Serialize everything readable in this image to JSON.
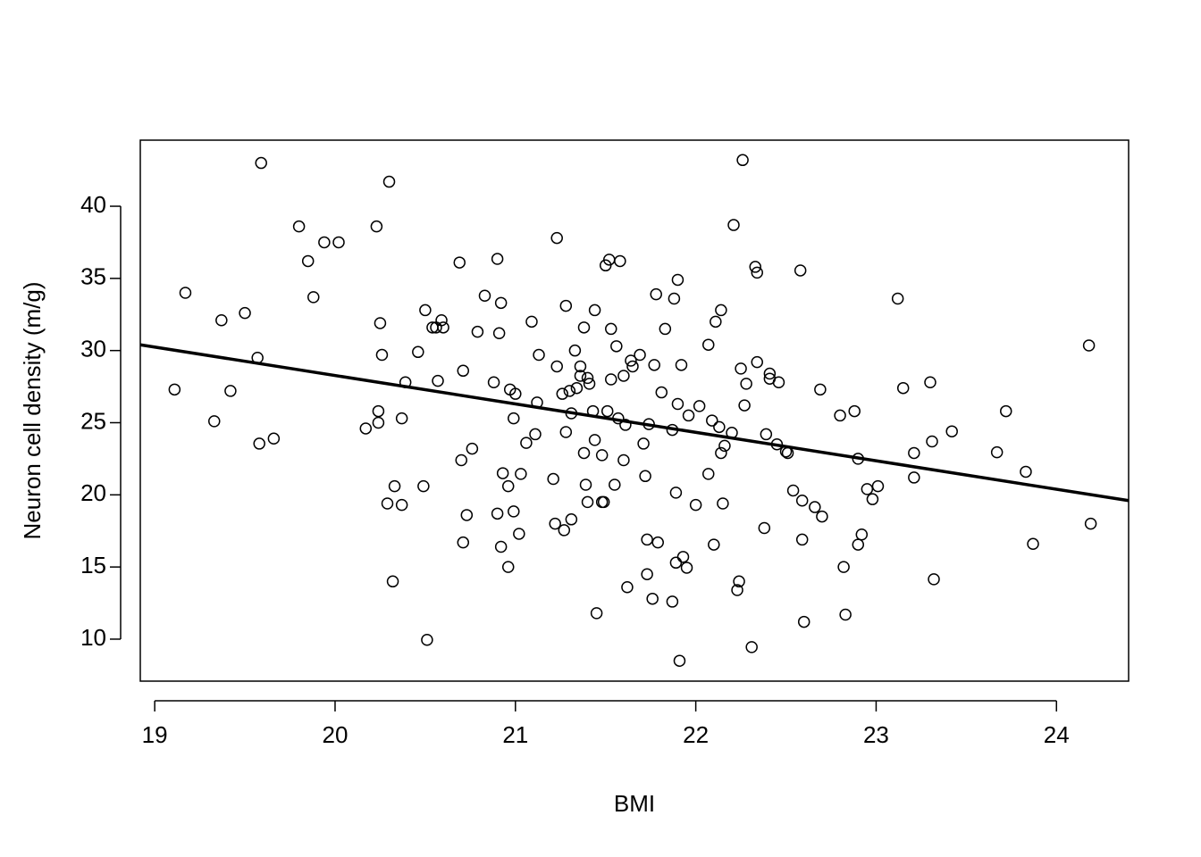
{
  "chart_data": {
    "type": "scatter",
    "x_label": "BMI",
    "y_label": "Neuron cell density (m/g)",
    "x": [
      19.11,
      19.17,
      19.33,
      19.37,
      19.42,
      19.5,
      19.57,
      19.58,
      19.59,
      19.66,
      19.8,
      19.85,
      19.88,
      19.94,
      20.02,
      20.17,
      20.23,
      20.24,
      20.25,
      20.26,
      20.24,
      20.29,
      20.3,
      20.32,
      20.33,
      20.37,
      20.37,
      20.39,
      20.46,
      20.49,
      20.5,
      20.51,
      20.54,
      20.56,
      20.57,
      20.59,
      20.6,
      20.69,
      20.7,
      20.71,
      20.71,
      20.73,
      20.76,
      20.79,
      20.83,
      20.88,
      20.9,
      20.9,
      20.91,
      20.92,
      20.92,
      20.93,
      20.96,
      20.96,
      20.97,
      20.99,
      20.99,
      21.0,
      21.03,
      21.02,
      21.06,
      21.09,
      21.11,
      21.12,
      21.13,
      21.21,
      21.22,
      21.23,
      21.23,
      21.26,
      21.27,
      21.28,
      21.28,
      21.3,
      21.31,
      21.31,
      21.33,
      21.34,
      21.36,
      21.36,
      21.38,
      21.38,
      21.39,
      21.4,
      21.4,
      21.41,
      21.43,
      21.44,
      21.44,
      21.45,
      21.48,
      21.48,
      21.49,
      21.5,
      21.51,
      21.52,
      21.53,
      21.53,
      21.55,
      21.56,
      21.57,
      21.58,
      21.6,
      21.6,
      21.61,
      21.62,
      21.64,
      21.65,
      21.69,
      21.71,
      21.72,
      21.73,
      21.73,
      21.74,
      21.76,
      21.77,
      21.78,
      21.79,
      21.81,
      21.83,
      21.87,
      21.87,
      21.88,
      21.89,
      21.89,
      21.9,
      21.9,
      21.91,
      21.92,
      21.93,
      21.95,
      21.96,
      22.0,
      22.02,
      22.07,
      22.07,
      22.09,
      22.1,
      22.11,
      22.13,
      22.14,
      22.14,
      22.15,
      22.16,
      22.2,
      22.21,
      22.23,
      22.24,
      22.25,
      22.26,
      22.27,
      22.28,
      22.31,
      22.33,
      22.34,
      22.34,
      22.38,
      22.39,
      22.41,
      22.41,
      22.45,
      22.46,
      22.5,
      22.51,
      22.54,
      22.58,
      22.59,
      22.59,
      22.6,
      22.66,
      22.69,
      22.7,
      22.8,
      22.82,
      22.83,
      22.88,
      22.9,
      22.9,
      22.92,
      22.95,
      22.98,
      23.01,
      23.12,
      23.15,
      23.21,
      23.21,
      23.3,
      23.31,
      23.32,
      23.42,
      23.67,
      23.72,
      23.83,
      23.87,
      24.18,
      24.19
    ],
    "values": [
      27.3,
      34.0,
      25.1,
      32.1,
      27.2,
      32.6,
      29.5,
      23.55,
      43.0,
      23.9,
      38.6,
      36.2,
      33.7,
      37.5,
      37.5,
      24.6,
      38.6,
      25.0,
      31.9,
      29.7,
      25.8,
      19.4,
      41.7,
      14.0,
      20.6,
      19.3,
      25.3,
      27.8,
      29.9,
      20.6,
      32.8,
      9.95,
      31.6,
      31.6,
      27.9,
      32.1,
      31.6,
      36.1,
      22.4,
      16.7,
      28.6,
      18.6,
      23.2,
      31.3,
      33.8,
      27.8,
      36.35,
      18.7,
      31.2,
      33.3,
      16.4,
      21.5,
      20.6,
      15.0,
      27.3,
      18.85,
      25.3,
      27.0,
      21.45,
      17.3,
      23.6,
      32.0,
      24.2,
      26.4,
      29.7,
      21.1,
      18.0,
      28.9,
      37.8,
      27.0,
      17.55,
      24.35,
      33.1,
      27.2,
      18.3,
      25.65,
      30.0,
      27.4,
      28.25,
      28.9,
      31.6,
      22.9,
      20.7,
      19.5,
      28.1,
      27.7,
      25.8,
      32.8,
      23.8,
      11.8,
      19.5,
      22.75,
      19.5,
      35.9,
      25.8,
      36.3,
      31.5,
      28.0,
      20.7,
      30.3,
      25.3,
      36.2,
      22.4,
      28.25,
      24.85,
      13.6,
      29.3,
      28.9,
      29.7,
      23.55,
      21.3,
      14.5,
      16.9,
      24.9,
      12.8,
      29.0,
      33.9,
      16.7,
      27.1,
      31.5,
      12.6,
      24.5,
      33.6,
      15.3,
      20.15,
      26.3,
      34.9,
      8.5,
      29.0,
      15.7,
      14.95,
      25.5,
      19.3,
      26.15,
      21.45,
      30.4,
      25.15,
      16.55,
      32.0,
      24.7,
      32.8,
      22.9,
      19.4,
      23.4,
      24.3,
      38.7,
      13.4,
      14.0,
      28.75,
      43.2,
      26.2,
      27.7,
      9.45,
      35.8,
      35.4,
      29.2,
      17.7,
      24.2,
      28.4,
      28.05,
      23.5,
      27.8,
      23.0,
      22.9,
      20.3,
      35.55,
      19.6,
      16.9,
      11.2,
      19.15,
      27.3,
      18.5,
      25.5,
      15.0,
      11.7,
      25.8,
      22.5,
      16.55,
      17.25,
      20.4,
      19.7,
      20.6,
      33.6,
      27.4,
      22.9,
      21.2,
      27.8,
      23.7,
      14.15,
      24.4,
      22.95,
      25.8,
      21.6,
      16.6,
      30.35,
      18.0
    ],
    "color": "#000000",
    "fit_line": {
      "x": [
        18.92,
        24.4
      ],
      "y": [
        30.4,
        19.6
      ],
      "color": "#000000"
    },
    "xlim": [
      18.92,
      24.4
    ],
    "ylim": [
      7.09,
      44.58
    ],
    "xticks": [
      19,
      20,
      21,
      22,
      23,
      24
    ],
    "yticks": [
      10,
      15,
      20,
      25,
      30,
      35,
      40
    ]
  }
}
